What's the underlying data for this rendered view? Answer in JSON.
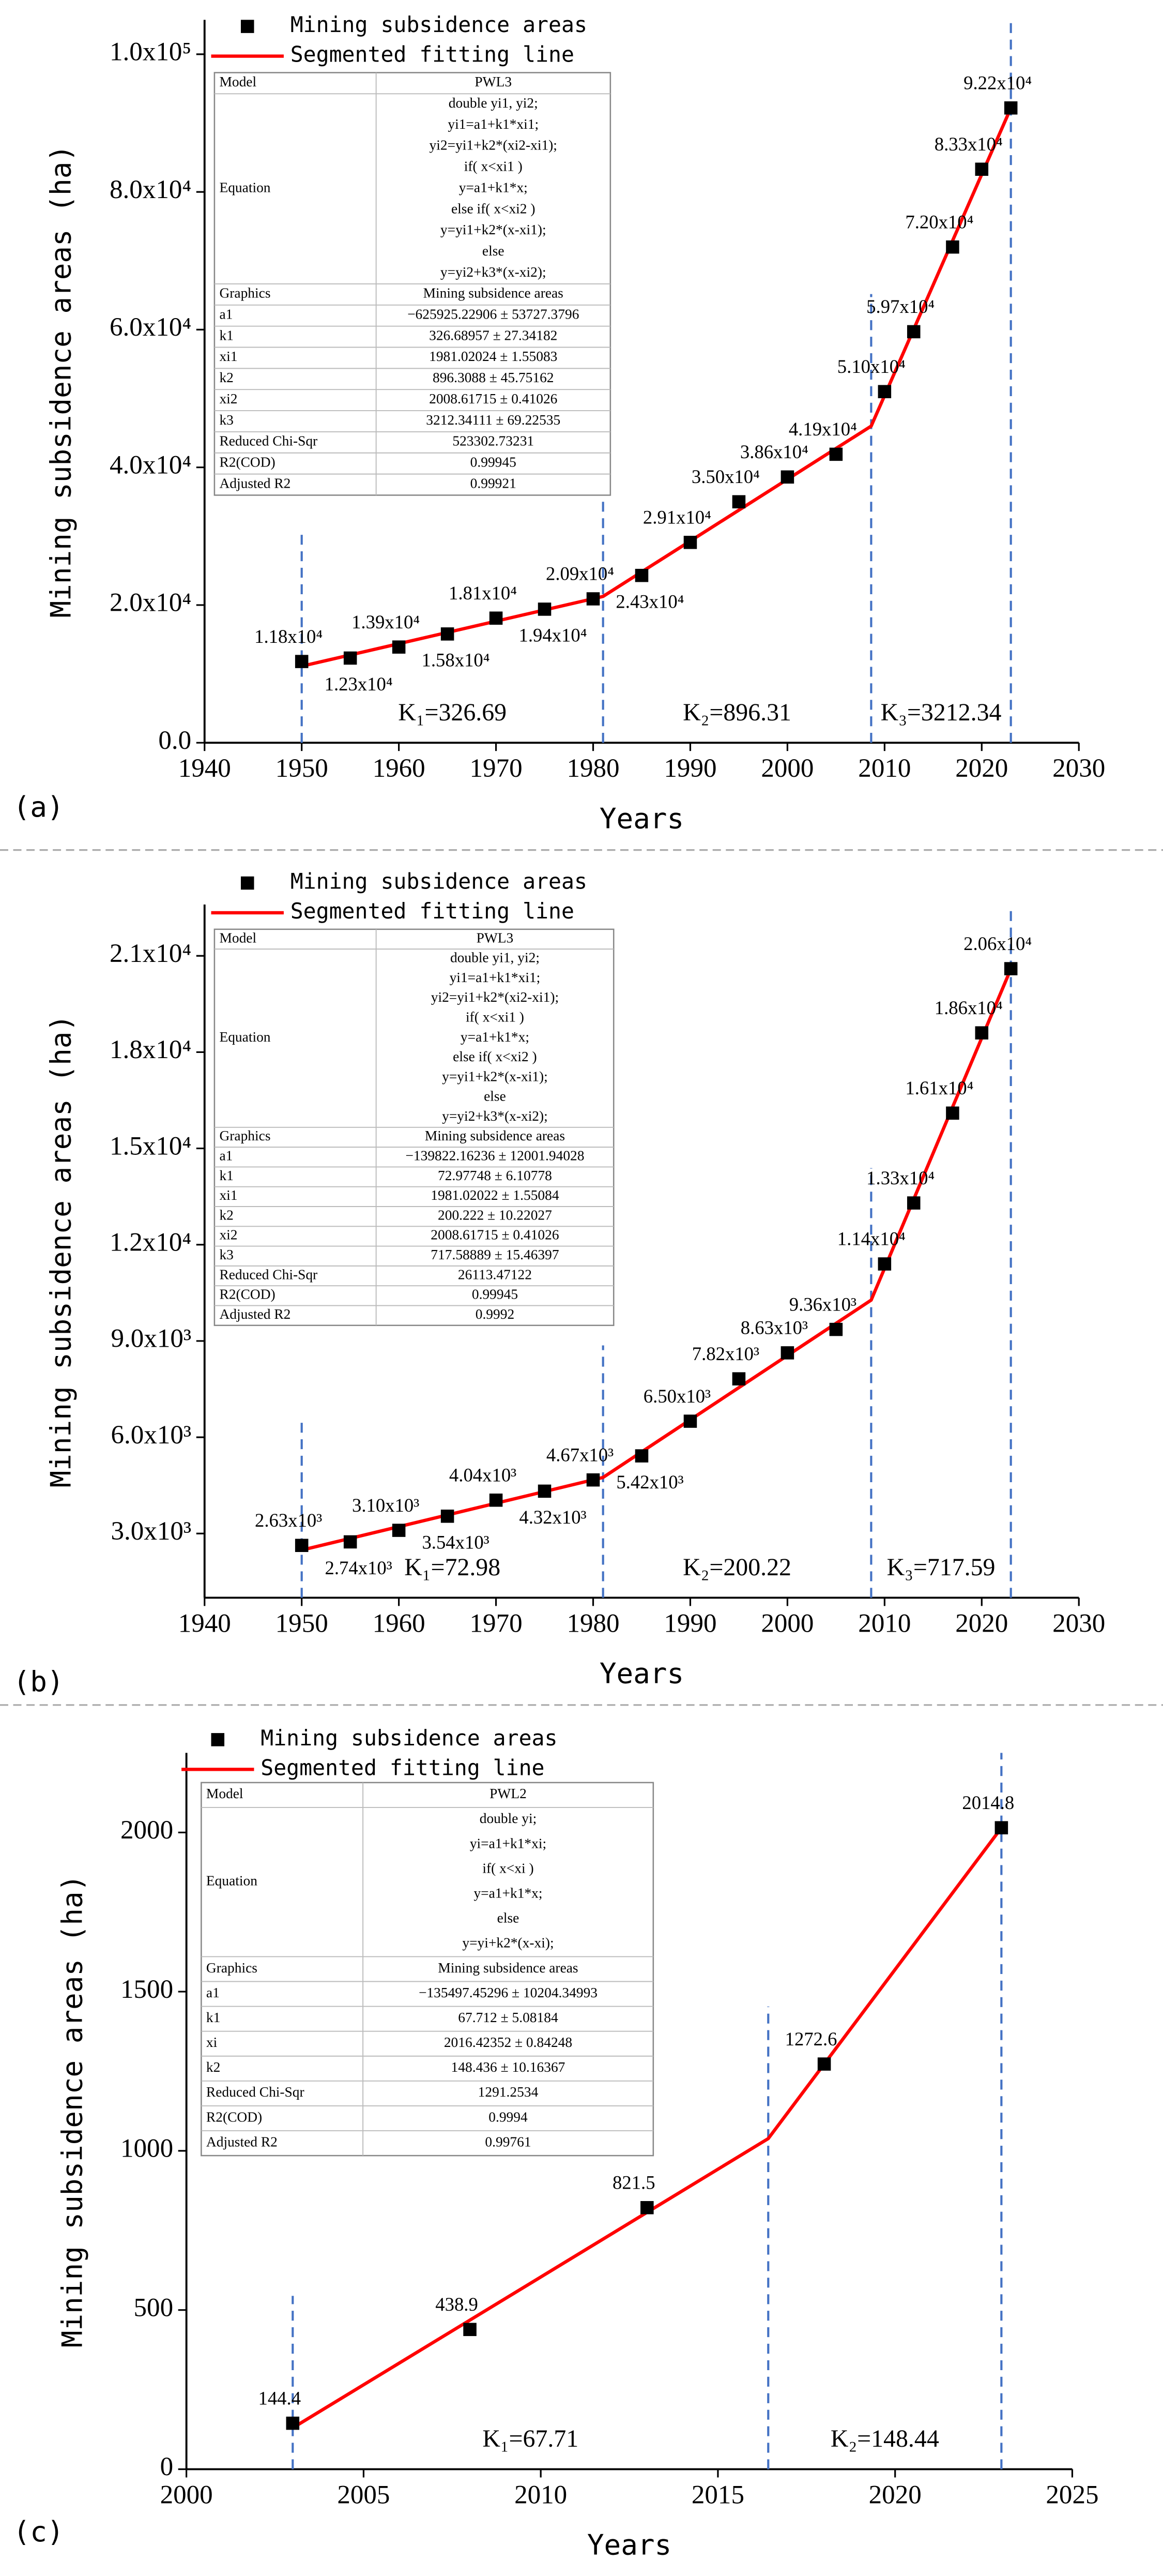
{
  "chart_data": [
    {
      "type": "scatter",
      "panel_label": "(a)",
      "xlabel": "Years",
      "ylabel": "Mining subsidence areas (ha)",
      "xlim": [
        1940,
        2030
      ],
      "xticks": [
        1940,
        1950,
        1960,
        1970,
        1980,
        1990,
        2000,
        2010,
        2020,
        2030
      ],
      "ylim": [
        0,
        105000
      ],
      "yticks": [
        {
          "value": 0,
          "label": "0.0"
        },
        {
          "value": 20000,
          "label": "2.0x10⁴"
        },
        {
          "value": 40000,
          "label": "4.0x10⁴"
        },
        {
          "value": 60000,
          "label": "6.0x10⁴"
        },
        {
          "value": 80000,
          "label": "8.0x10⁴"
        },
        {
          "value": 100000,
          "label": "1.0x10⁵"
        }
      ],
      "series": [
        {
          "name": "Mining subsidence areas",
          "mode": "markers",
          "color": "#000000",
          "x": [
            1950,
            1955,
            1960,
            1965,
            1970,
            1975,
            1980,
            1985,
            1990,
            1995,
            2000,
            2005,
            2010,
            2013,
            2017,
            2020,
            2023
          ],
          "values": [
            11800,
            12300,
            13900,
            15800,
            18100,
            19400,
            20900,
            24300,
            29100,
            35000,
            38600,
            41900,
            51000,
            59700,
            72000,
            83300,
            92200
          ],
          "value_labels": [
            "1.18x10⁴",
            "1.23x10⁴",
            "1.39x10⁴",
            "1.58x10⁴",
            "1.81x10⁴",
            "1.94x10⁴",
            "2.09x10⁴",
            "2.43x10⁴",
            "2.91x10⁴",
            "3.50x10⁴",
            "3.86x10⁴",
            "4.19x10⁴",
            "5.10x10⁴",
            "5.97x10⁴",
            "7.20x10⁴",
            "8.33x10⁴",
            "9.22x10⁴"
          ]
        },
        {
          "name": "Segmented fitting line",
          "mode": "lines",
          "color": "#ff0000",
          "x": [
            1950,
            1981.02,
            2008.62,
            2023
          ],
          "values": [
            11118,
            21253,
            45989,
            92192
          ]
        }
      ],
      "annotations": [
        "K₁=326.69",
        "K₂=896.31",
        "K₃=3212.34"
      ],
      "table": [
        [
          "Model",
          "PWL3"
        ],
        [
          "Equation",
          [
            "double yi1, yi2;",
            "yi1=a1+k1*xi1;",
            "yi2=yi1+k2*(xi2-xi1);",
            "if( x<xi1 )",
            "y=a1+k1*x;",
            "else if( x<xi2 )",
            "y=yi1+k2*(x-xi1);",
            "else",
            "y=yi2+k3*(x-xi2);"
          ]
        ],
        [
          "Graphics",
          "Mining subsidence areas"
        ],
        [
          "a1",
          "−625925.22906 ± 53727.3796"
        ],
        [
          "k1",
          "326.68957 ± 27.34182"
        ],
        [
          "xi1",
          "1981.02024 ± 1.55083"
        ],
        [
          "k2",
          "896.3088 ± 45.75162"
        ],
        [
          "xi2",
          "2008.61715 ± 0.41026"
        ],
        [
          "k3",
          "3212.34111 ± 69.22535"
        ],
        [
          "Reduced Chi-Sqr",
          "523302.73231"
        ],
        [
          "R2(COD)",
          "0.99945"
        ],
        [
          "Adjusted R2",
          "0.99921"
        ]
      ]
    },
    {
      "type": "scatter",
      "panel_label": "(b)",
      "xlabel": "Years",
      "ylabel": "Mining subsidence areas (ha)",
      "xlim": [
        1940,
        2030
      ],
      "xticks": [
        1940,
        1950,
        1960,
        1970,
        1980,
        1990,
        2000,
        2010,
        2020,
        2030
      ],
      "ylim": [
        1000,
        22600
      ],
      "yticks": [
        {
          "value": 3000,
          "label": "3.0x10³"
        },
        {
          "value": 6000,
          "label": "6.0x10³"
        },
        {
          "value": 9000,
          "label": "9.0x10³"
        },
        {
          "value": 12000,
          "label": "1.2x10⁴"
        },
        {
          "value": 15000,
          "label": "1.5x10⁴"
        },
        {
          "value": 18000,
          "label": "1.8x10⁴"
        },
        {
          "value": 21000,
          "label": "2.1x10⁴"
        }
      ],
      "series": [
        {
          "name": "Mining subsidence areas",
          "mode": "markers",
          "color": "#000000",
          "x": [
            1950,
            1955,
            1960,
            1965,
            1970,
            1975,
            1980,
            1985,
            1990,
            1995,
            2000,
            2005,
            2010,
            2013,
            2017,
            2020,
            2023
          ],
          "values": [
            2630,
            2740,
            3100,
            3540,
            4040,
            4320,
            4670,
            5420,
            6500,
            7820,
            8630,
            9360,
            11400,
            13300,
            16100,
            18600,
            20600
          ],
          "value_labels": [
            "2.63x10³",
            "2.74x10³",
            "3.10x10³",
            "3.54x10³",
            "4.04x10³",
            "4.32x10³",
            "4.67x10³",
            "5.42x10³",
            "6.50x10³",
            "7.82x10³",
            "8.63x10³",
            "9.36x10³",
            "1.14x10⁴",
            "1.33x10⁴",
            "1.61x10⁴",
            "1.86x10⁴",
            "2.06x10⁴"
          ]
        },
        {
          "name": "Segmented fitting line",
          "mode": "lines",
          "color": "#ff0000",
          "x": [
            1950,
            1981.02,
            2008.62,
            2023
          ],
          "values": [
            2484,
            4748,
            10273,
            20594
          ]
        }
      ],
      "annotations": [
        "K₁=72.98",
        "K₂=200.22",
        "K₃=717.59"
      ],
      "table": [
        [
          "Model",
          "PWL3"
        ],
        [
          "Equation",
          [
            "double yi1, yi2;",
            "yi1=a1+k1*xi1;",
            "yi2=yi1+k2*(xi2-xi1);",
            "if( x<xi1 )",
            "y=a1+k1*x;",
            "else if( x<xi2 )",
            "y=yi1+k2*(x-xi1);",
            "else",
            "y=yi2+k3*(x-xi2);"
          ]
        ],
        [
          "Graphics",
          "Mining subsidence areas"
        ],
        [
          "a1",
          "−139822.16236 ± 12001.94028"
        ],
        [
          "k1",
          "72.97748 ± 6.10778"
        ],
        [
          "xi1",
          "1981.02022 ± 1.55084"
        ],
        [
          "k2",
          "200.222 ± 10.22027"
        ],
        [
          "xi2",
          "2008.61715 ± 0.41026"
        ],
        [
          "k3",
          "717.58889 ± 15.46397"
        ],
        [
          "Reduced Chi-Sqr",
          "26113.47122"
        ],
        [
          "R2(COD)",
          "0.99945"
        ],
        [
          "Adjusted R2",
          "0.9992"
        ]
      ]
    },
    {
      "type": "scatter",
      "panel_label": "(c)",
      "xlabel": "Years",
      "ylabel": "Mining subsidence areas (ha)",
      "xlim": [
        2000,
        2025
      ],
      "xticks": [
        2000,
        2005,
        2010,
        2015,
        2020,
        2025
      ],
      "ylim": [
        0,
        2250
      ],
      "yticks": [
        0,
        500,
        1000,
        1500,
        2000
      ],
      "series": [
        {
          "name": "Mining subsidence areas",
          "mode": "markers",
          "color": "#000000",
          "x": [
            2003,
            2008,
            2013,
            2018,
            2023
          ],
          "values": [
            144.4,
            438.9,
            821.5,
            1272.6,
            2014.8
          ]
        },
        {
          "name": "Segmented fitting line",
          "mode": "lines",
          "color": "#ff0000",
          "x": [
            2003,
            2016.42,
            2023
          ],
          "values": [
            129.7,
            1038.4,
            2014.6
          ]
        }
      ],
      "annotations": [
        "K₁=67.71",
        "K₂=148.44"
      ],
      "table": [
        [
          "Model",
          "PWL2"
        ],
        [
          "Equation",
          [
            "double yi;",
            "yi=a1+k1*xi;",
            "if( x<xi )",
            "y=a1+k1*x;",
            "else",
            "y=yi+k2*(x-xi);"
          ]
        ],
        [
          "Graphics",
          "Mining subsidence areas"
        ],
        [
          "a1",
          "−135497.45296 ± 10204.34993"
        ],
        [
          "k1",
          "67.712 ± 5.08184"
        ],
        [
          "xi",
          "2016.42352 ± 0.84248"
        ],
        [
          "k2",
          "148.436 ± 10.16367"
        ],
        [
          "Reduced Chi-Sqr",
          "1291.2534"
        ],
        [
          "R2(COD)",
          "0.9994"
        ],
        [
          "Adjusted R2",
          "0.99761"
        ]
      ]
    }
  ]
}
